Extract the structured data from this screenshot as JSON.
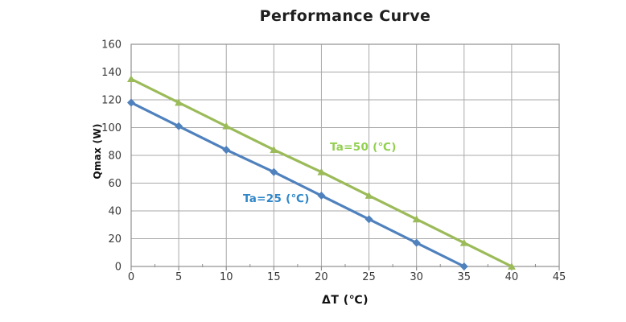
{
  "chart": {
    "title": "Performance Curve",
    "ylabel": "Qmax (W)",
    "xlabel": "ΔT (℃)",
    "series_label_ta50": "Ta=50 (℃)",
    "series_label_ta25": "Ta=25 (℃)"
  },
  "chart_data": {
    "type": "line",
    "title": "Performance Curve",
    "xlabel": "ΔT (℃)",
    "ylabel": "Qmax (W)",
    "xlim": [
      0,
      45
    ],
    "ylim": [
      0,
      160
    ],
    "x_ticks": [
      0,
      5,
      10,
      15,
      20,
      25,
      30,
      35,
      40,
      45
    ],
    "y_ticks": [
      0,
      20,
      40,
      60,
      80,
      100,
      120,
      140,
      160
    ],
    "x_minor_step": 2.5,
    "grid": true,
    "legend_position": "inline-annotations",
    "series": [
      {
        "name": "Ta=25 (℃)",
        "slug": "ta25",
        "color": "#4f81bd",
        "label_color": "#2e86c8",
        "marker": "diamond",
        "x": [
          0,
          5,
          10,
          15,
          20,
          25,
          30,
          35
        ],
        "values": [
          118,
          101,
          84,
          68,
          51,
          34,
          17,
          0
        ]
      },
      {
        "name": "Ta=50 (℃)",
        "slug": "ta50",
        "color": "#9bbb59",
        "label_color": "#92d050",
        "marker": "triangle",
        "x": [
          0,
          5,
          10,
          15,
          20,
          25,
          30,
          35,
          40
        ],
        "values": [
          135,
          118,
          101,
          84,
          68,
          51,
          34,
          17,
          0
        ]
      }
    ],
    "colors": {
      "grid": "#a9a9a9",
      "axis": "#8f8f8f",
      "title": "#1f1f1f",
      "tick_label": "#383838"
    }
  }
}
